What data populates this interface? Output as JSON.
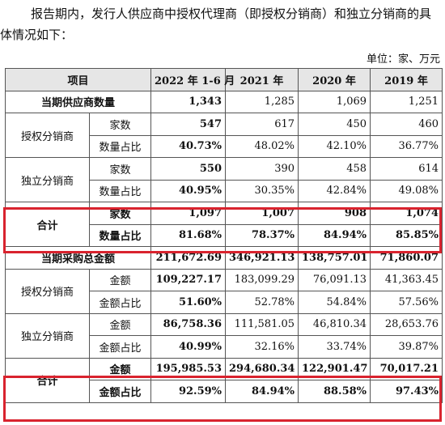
{
  "intro": "报告期内，发行人供应商中授权代理商（即授权分销商）和独立分销商的具体情况如下：",
  "unit": "单位：家、万元",
  "columns": [
    "项目",
    "2022 年 1-6 月",
    "2021 年",
    "2020 年",
    "2019 年"
  ],
  "supplier_total": {
    "label": "当期供应商数量",
    "values": [
      "1,343",
      "1,285",
      "1,069",
      "1,251"
    ]
  },
  "auth_supplier": {
    "label": "授权分销商",
    "rows": [
      {
        "label": "家数",
        "values": [
          "547",
          "617",
          "450",
          "460"
        ]
      },
      {
        "label": "数量占比",
        "values": [
          "40.73%",
          "48.02%",
          "42.10%",
          "36.77%"
        ]
      }
    ]
  },
  "indep_supplier": {
    "label": "独立分销商",
    "rows": [
      {
        "label": "家数",
        "values": [
          "550",
          "390",
          "458",
          "614"
        ]
      },
      {
        "label": "数量占比",
        "values": [
          "40.95%",
          "30.35%",
          "42.84%",
          "49.08%"
        ]
      }
    ]
  },
  "supplier_sum": {
    "label": "合计",
    "rows": [
      {
        "label": "家数",
        "values": [
          "1,097",
          "1,007",
          "908",
          "1,074"
        ]
      },
      {
        "label": "数量占比",
        "values": [
          "81.68%",
          "78.37%",
          "84.94%",
          "85.85%"
        ]
      }
    ]
  },
  "purchase_total": {
    "label": "当期采购总金额",
    "values": [
      "211,672.69",
      "346,921.13",
      "138,757.01",
      "71,860.07"
    ]
  },
  "auth_purchase": {
    "label": "授权分销商",
    "rows": [
      {
        "label": "金额",
        "values": [
          "109,227.17",
          "183,099.29",
          "76,091.13",
          "41,363.45"
        ]
      },
      {
        "label": "金额占比",
        "values": [
          "51.60%",
          "52.78%",
          "54.84%",
          "57.56%"
        ]
      }
    ]
  },
  "indep_purchase": {
    "label": "独立分销商",
    "rows": [
      {
        "label": "金额",
        "values": [
          "86,758.36",
          "111,581.05",
          "46,810.34",
          "28,653.76"
        ]
      },
      {
        "label": "金额占比",
        "values": [
          "40.99%",
          "32.16%",
          "33.74%",
          "39.87%"
        ]
      }
    ]
  },
  "purchase_sum": {
    "label": "合计",
    "rows": [
      {
        "label": "金额",
        "values": [
          "195,985.53",
          "294,680.34",
          "122,901.47",
          "70,017.21"
        ]
      },
      {
        "label": "金额占比",
        "values": [
          "92.59%",
          "84.94%",
          "88.58%",
          "97.43%"
        ]
      }
    ]
  },
  "highlight_color": "#d9232e",
  "header_bg": "#e6e6e6"
}
